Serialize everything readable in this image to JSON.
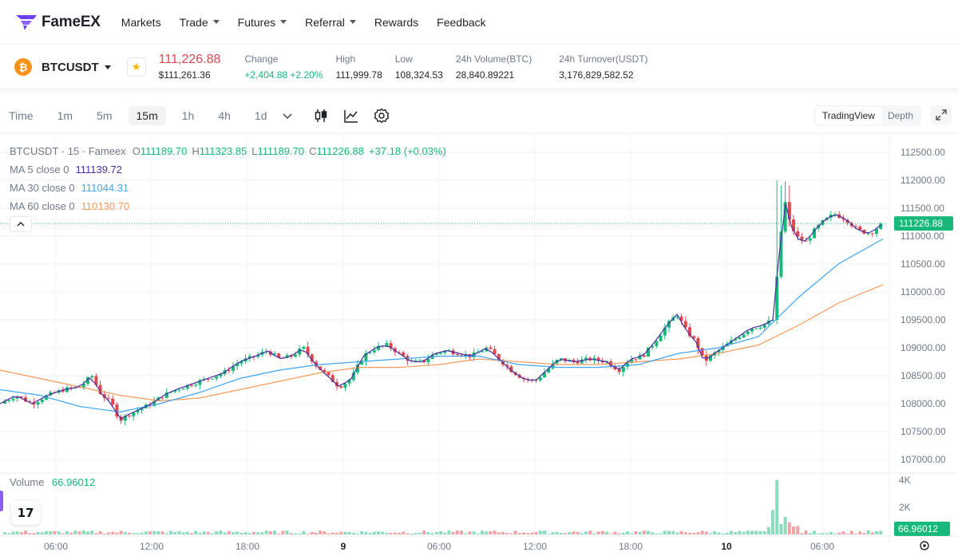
{
  "nav": {
    "brand": "FameEX",
    "items": [
      {
        "label": "Markets",
        "dropdown": false
      },
      {
        "label": "Trade",
        "dropdown": true
      },
      {
        "label": "Futures",
        "dropdown": true
      },
      {
        "label": "Referral",
        "dropdown": true
      },
      {
        "label": "Rewards",
        "dropdown": false
      },
      {
        "label": "Feedback",
        "dropdown": false
      }
    ]
  },
  "ticker": {
    "symbol": "BTCUSDT",
    "coin_glyph": "₿",
    "price": "111,226.88",
    "price_usd": "$111,261.36",
    "stats": [
      {
        "label": "Change",
        "value": "+2,404.88 +2.20%",
        "positive": true
      },
      {
        "label": "High",
        "value": "111,999.78",
        "positive": false
      },
      {
        "label": "Low",
        "value": "108,324.53",
        "positive": false
      },
      {
        "label": "24h Volume(BTC)",
        "value": "28,840.89221",
        "positive": false
      },
      {
        "label": "24h Turnover(USDT)",
        "value": "3,176,829,582.52",
        "positive": false
      }
    ]
  },
  "toolbar": {
    "time_label": "Time",
    "intervals": [
      "1m",
      "5m",
      "15m",
      "1h",
      "4h",
      "1d"
    ],
    "active_interval": "15m",
    "views": [
      "TradingView",
      "Depth"
    ],
    "active_view": "TradingView"
  },
  "chart_legend": {
    "title": "BTCUSDT · 15 · Fameex",
    "open_k": "O",
    "open": "111189.70",
    "high_k": "H",
    "high": "111323.85",
    "low_k": "L",
    "low": "111189.70",
    "close_k": "C",
    "close": "111226.88",
    "change": "+37.18 (+0.03%)",
    "ma": [
      {
        "label": "MA 5 close 0",
        "value": "111139.72",
        "color": "#4b2d9e"
      },
      {
        "label": "MA 30 close 0",
        "value": "111044.31",
        "color": "#42a5f5"
      },
      {
        "label": "MA 60 close 0",
        "value": "110130.70",
        "color": "#f59a5b"
      }
    ],
    "volume_label": "Volume",
    "volume_value": "66.96012"
  },
  "chart_data": {
    "type": "candlestick",
    "interval": "15m",
    "price_axis": [
      "112500.00",
      "112000.00",
      "111500.00",
      "111000.00",
      "110500.00",
      "110000.00",
      "109500.00",
      "109000.00",
      "108500.00",
      "108000.00",
      "107500.00",
      "107000.00"
    ],
    "price_range": [
      106800,
      112800
    ],
    "last_price_label": "111226.88",
    "volume_axis": [
      "4K",
      "2K"
    ],
    "volume_last_label": "66.96012",
    "time_axis": [
      "06:00",
      "12:00",
      "18:00",
      "9",
      "06:00",
      "12:00",
      "18:00",
      "10",
      "06:00"
    ],
    "series": [
      {
        "name": "MA 5 close 0",
        "color": "#4b2d9e"
      },
      {
        "name": "MA 30 close 0",
        "color": "#42a5f5"
      },
      {
        "name": "MA 60 close 0",
        "color": "#f59a5b"
      }
    ],
    "close_path": [
      [
        0,
        108000
      ],
      [
        20,
        108150
      ],
      [
        40,
        108000
      ],
      [
        60,
        108150
      ],
      [
        80,
        108250
      ],
      [
        100,
        108300
      ],
      [
        115,
        108500
      ],
      [
        125,
        108200
      ],
      [
        140,
        108000
      ],
      [
        150,
        107700
      ],
      [
        160,
        107800
      ],
      [
        175,
        107900
      ],
      [
        190,
        108000
      ],
      [
        205,
        108150
      ],
      [
        220,
        108250
      ],
      [
        240,
        108350
      ],
      [
        260,
        108450
      ],
      [
        280,
        108550
      ],
      [
        300,
        108750
      ],
      [
        320,
        108850
      ],
      [
        335,
        108950
      ],
      [
        350,
        108800
      ],
      [
        365,
        108850
      ],
      [
        380,
        109000
      ],
      [
        395,
        108700
      ],
      [
        410,
        108500
      ],
      [
        425,
        108300
      ],
      [
        440,
        108450
      ],
      [
        455,
        108850
      ],
      [
        470,
        109000
      ],
      [
        485,
        109050
      ],
      [
        500,
        108900
      ],
      [
        515,
        108750
      ],
      [
        530,
        108750
      ],
      [
        545,
        108900
      ],
      [
        560,
        108950
      ],
      [
        575,
        108900
      ],
      [
        590,
        108850
      ],
      [
        610,
        109000
      ],
      [
        625,
        108800
      ],
      [
        640,
        108600
      ],
      [
        655,
        108450
      ],
      [
        670,
        108400
      ],
      [
        685,
        108600
      ],
      [
        700,
        108800
      ],
      [
        720,
        108750
      ],
      [
        740,
        108800
      ],
      [
        760,
        108750
      ],
      [
        775,
        108600
      ],
      [
        790,
        108800
      ],
      [
        805,
        108850
      ],
      [
        820,
        109100
      ],
      [
        835,
        109400
      ],
      [
        848,
        109600
      ],
      [
        860,
        109300
      ],
      [
        872,
        109100
      ],
      [
        882,
        108750
      ],
      [
        895,
        108900
      ],
      [
        910,
        109050
      ],
      [
        925,
        109200
      ],
      [
        940,
        109350
      ],
      [
        955,
        109400
      ],
      [
        968,
        109500
      ],
      [
        975,
        110500
      ],
      [
        982,
        111700
      ],
      [
        990,
        111200
      ],
      [
        1000,
        110950
      ],
      [
        1010,
        110900
      ],
      [
        1020,
        111100
      ],
      [
        1030,
        111250
      ],
      [
        1045,
        111400
      ],
      [
        1060,
        111300
      ],
      [
        1075,
        111100
      ],
      [
        1090,
        111050
      ],
      [
        1106,
        111227
      ]
    ],
    "ma30_path": [
      [
        0,
        108250
      ],
      [
        50,
        108150
      ],
      [
        100,
        107950
      ],
      [
        150,
        107850
      ],
      [
        200,
        108000
      ],
      [
        250,
        108200
      ],
      [
        300,
        108450
      ],
      [
        350,
        108600
      ],
      [
        400,
        108700
      ],
      [
        450,
        108750
      ],
      [
        500,
        108800
      ],
      [
        550,
        108850
      ],
      [
        600,
        108850
      ],
      [
        650,
        108700
      ],
      [
        700,
        108650
      ],
      [
        750,
        108650
      ],
      [
        800,
        108700
      ],
      [
        850,
        108900
      ],
      [
        900,
        109000
      ],
      [
        950,
        109200
      ],
      [
        1000,
        109900
      ],
      [
        1050,
        110500
      ],
      [
        1106,
        110950
      ]
    ],
    "ma60_path": [
      [
        0,
        108600
      ],
      [
        50,
        108450
      ],
      [
        100,
        108300
      ],
      [
        150,
        108150
      ],
      [
        200,
        108050
      ],
      [
        250,
        108100
      ],
      [
        300,
        108250
      ],
      [
        350,
        108400
      ],
      [
        400,
        108550
      ],
      [
        450,
        108650
      ],
      [
        500,
        108650
      ],
      [
        550,
        108700
      ],
      [
        600,
        108800
      ],
      [
        650,
        108750
      ],
      [
        700,
        108700
      ],
      [
        750,
        108700
      ],
      [
        800,
        108750
      ],
      [
        850,
        108800
      ],
      [
        900,
        108900
      ],
      [
        950,
        109050
      ],
      [
        1000,
        109400
      ],
      [
        1050,
        109800
      ],
      [
        1106,
        110130
      ]
    ],
    "volume_spikes": [
      {
        "at": 975,
        "value": 4000
      },
      {
        "at": 970,
        "value": 1800
      },
      {
        "at": 982,
        "value": 1300
      },
      {
        "at": 988,
        "value": 900
      }
    ]
  }
}
